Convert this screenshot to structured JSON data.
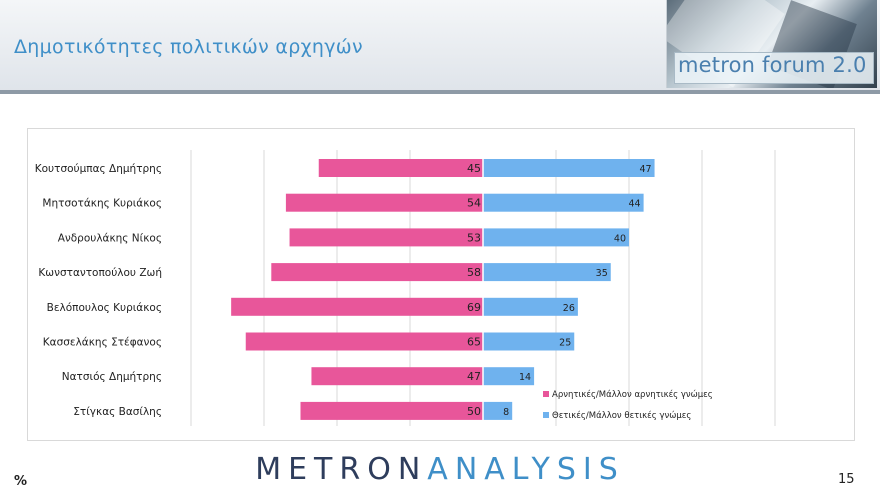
{
  "header": {
    "title": "Δημοτικότητες πολιτικών αρχηγών",
    "brand": "metron forum 2.0"
  },
  "footer": {
    "logo_part1": "METRON",
    "logo_part2": "ANALYSIS",
    "unit": "%",
    "page_number": "15"
  },
  "colors": {
    "negative": "#e8569a",
    "positive": "#6fb2ee",
    "title": "#3f8fc8"
  },
  "chart_data": {
    "type": "bar",
    "orientation": "horizontal-diverging",
    "categories": [
      "Κουτσούμπας Δημήτρης",
      "Μητσοτάκης Κυριάκος",
      "Ανδρουλάκης Νίκος",
      "Κωνσταντοπούλου Ζωή",
      "Βελόπουλος Κυριάκος",
      "Κασσελάκης Στέφανος",
      "Νατσιός Δημήτρης",
      "Στίγκας Βασίλης"
    ],
    "series": [
      {
        "name": "Αρνητικές/Μάλλον αρνητικές γνώμες",
        "values": [
          45,
          54,
          53,
          58,
          69,
          65,
          47,
          50
        ],
        "color": "#e8569a"
      },
      {
        "name": "Θετικές/Μάλλον θετικές γνώμες",
        "values": [
          47,
          44,
          40,
          35,
          26,
          25,
          14,
          8
        ],
        "color": "#6fb2ee"
      }
    ],
    "xlim": [
      -80,
      80
    ],
    "grid": true,
    "legend": "bottom-right"
  }
}
